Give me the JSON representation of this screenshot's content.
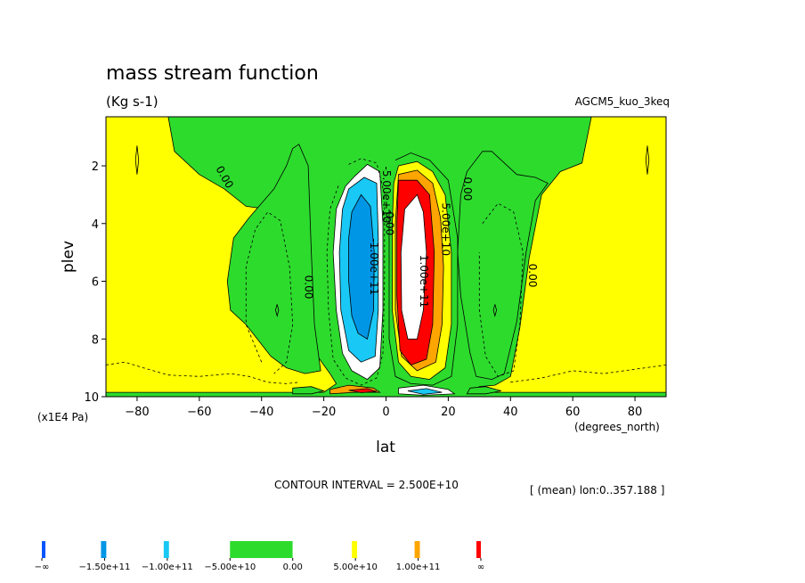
{
  "chart_data": {
    "type": "heatmap",
    "title": "mass stream function",
    "units": "(Kg s-1)",
    "model": "AGCM5_kuo_3keq",
    "xlabel": "lat",
    "xunits": "(degrees_north)",
    "ylabel": "plev",
    "yunits": "(x1E4 Pa)",
    "contour_interval": "CONTOUR INTERVAL = 2.500E+10",
    "info": "[ (mean) lon:0..357.188 ]",
    "xlim": [
      -90,
      90
    ],
    "ylim": [
      10,
      0.3
    ],
    "x_ticks": [
      -80,
      -60,
      -40,
      -20,
      0,
      20,
      40,
      60,
      80
    ],
    "x_tick_labels": [
      "−80",
      "−60",
      "−40",
      "−20",
      "0",
      "20",
      "40",
      "60",
      "80"
    ],
    "y_ticks": [
      2,
      4,
      6,
      8,
      10
    ],
    "y_tick_labels": [
      "2",
      "4",
      "6",
      "8",
      "10"
    ],
    "contour_labels": [
      {
        "text": "0.00",
        "x": -52,
        "y": 2.4,
        "angle": 60
      },
      {
        "text": "0.00",
        "x": -25,
        "y": 6.2,
        "angle": 90
      },
      {
        "text": "-5.00e+10",
        "x": 0,
        "y": 3.0,
        "angle": 90
      },
      {
        "text": "-1.00e+11",
        "x": -4,
        "y": 5.5,
        "angle": 90
      },
      {
        "text": "0.00",
        "x": 1,
        "y": 4.0,
        "angle": 90
      },
      {
        "text": "1.00e+11",
        "x": 12,
        "y": 6.0,
        "angle": 90
      },
      {
        "text": "5.00e+10",
        "x": 19,
        "y": 4.2,
        "angle": 90
      },
      {
        "text": "0.00",
        "x": 26,
        "y": 2.8,
        "angle": 90
      },
      {
        "text": "0.00",
        "x": 47,
        "y": 5.8,
        "angle": 90
      }
    ],
    "regions": [
      {
        "level": "pos1",
        "points": [
          [
            -90,
            0.3
          ],
          [
            -70,
            0.3
          ],
          [
            -68,
            1.5
          ],
          [
            -60,
            2.3
          ],
          [
            -52,
            2.8
          ],
          [
            -45,
            3.4
          ],
          [
            -38,
            3.5
          ],
          [
            -32,
            4.0
          ],
          [
            -28,
            6.0
          ],
          [
            -25,
            7.5
          ],
          [
            -22,
            8.6
          ],
          [
            -18,
            9.2
          ],
          [
            -16,
            9.55
          ],
          [
            -20,
            9.85
          ],
          [
            -40,
            9.85
          ],
          [
            -70,
            9.85
          ],
          [
            -90,
            9.85
          ]
        ]
      },
      {
        "level": "pos1",
        "points": [
          [
            35,
            9.6
          ],
          [
            40,
            9.3
          ],
          [
            43,
            7.6
          ],
          [
            46,
            5.2
          ],
          [
            50,
            3.0
          ],
          [
            56,
            2.2
          ],
          [
            63,
            1.9
          ],
          [
            66,
            0.3
          ],
          [
            90,
            0.3
          ],
          [
            90,
            9.85
          ],
          [
            40,
            9.85
          ],
          [
            32,
            9.85
          ],
          [
            30,
            9.65
          ]
        ]
      },
      {
        "level": "zero",
        "points": [
          [
            -30,
            1.4
          ],
          [
            -28,
            1.25
          ],
          [
            -25,
            2.0
          ],
          [
            -24,
            5.0
          ],
          [
            -23,
            7.5
          ],
          [
            -21,
            9.1
          ],
          [
            -26,
            9.2
          ],
          [
            -32,
            9.0
          ],
          [
            -37,
            8.6
          ],
          [
            -45,
            7.5
          ],
          [
            -50,
            7.0
          ],
          [
            -51,
            6.0
          ],
          [
            -49,
            4.5
          ],
          [
            -44,
            3.8
          ],
          [
            -36,
            2.8
          ],
          [
            -32,
            2.0
          ]
        ]
      },
      {
        "level": "zero",
        "points": [
          [
            31,
            1.5
          ],
          [
            34,
            1.5
          ],
          [
            38,
            1.9
          ],
          [
            42,
            2.3
          ],
          [
            48,
            2.4
          ],
          [
            52,
            2.6
          ],
          [
            48,
            3.2
          ],
          [
            45,
            5.0
          ],
          [
            42,
            7.4
          ],
          [
            38,
            9.2
          ],
          [
            34,
            9.4
          ],
          [
            29,
            9.3
          ],
          [
            27,
            8.5
          ],
          [
            24,
            6.5
          ],
          [
            23,
            5.0
          ],
          [
            24,
            3.0
          ],
          [
            26,
            2.2
          ]
        ]
      },
      {
        "level": "neg1",
        "points": [
          [
            -10,
            2.35
          ],
          [
            -6,
            1.95
          ],
          [
            -2,
            2.2
          ],
          [
            -1,
            4.0
          ],
          [
            -1,
            7.0
          ],
          [
            -2,
            9.0
          ],
          [
            -6,
            9.4
          ],
          [
            -11,
            9.1
          ],
          [
            -14,
            8.5
          ],
          [
            -16,
            7.0
          ],
          [
            -17,
            5.0
          ],
          [
            -16,
            3.5
          ],
          [
            -13,
            2.7
          ]
        ]
      },
      {
        "level": "neg2",
        "points": [
          [
            -12,
            2.8
          ],
          [
            -7,
            2.4
          ],
          [
            -3,
            2.6
          ],
          [
            -2.5,
            4.5
          ],
          [
            -2.5,
            7.0
          ],
          [
            -3.5,
            8.6
          ],
          [
            -8,
            8.8
          ],
          [
            -12,
            8.4
          ],
          [
            -14.5,
            7.0
          ],
          [
            -15,
            5.0
          ],
          [
            -14,
            3.5
          ]
        ]
      },
      {
        "level": "neg3",
        "points": [
          [
            -11,
            3.6
          ],
          [
            -8,
            3.0
          ],
          [
            -5,
            3.4
          ],
          [
            -3.8,
            5.0
          ],
          [
            -4,
            7.0
          ],
          [
            -6,
            8.0
          ],
          [
            -9,
            7.8
          ],
          [
            -11,
            7.2
          ],
          [
            -12,
            6.0
          ],
          [
            -12,
            4.5
          ]
        ]
      },
      {
        "level": "pos1",
        "points": [
          [
            4,
            2.0
          ],
          [
            10,
            1.85
          ],
          [
            15,
            2.2
          ],
          [
            19,
            3.0
          ],
          [
            21,
            5.0
          ],
          [
            21,
            7.5
          ],
          [
            19,
            9.0
          ],
          [
            14,
            9.4
          ],
          [
            8,
            9.3
          ],
          [
            4,
            8.8
          ],
          [
            2,
            7.0
          ],
          [
            2,
            4.0
          ],
          [
            2.5,
            2.6
          ]
        ]
      },
      {
        "level": "pos2",
        "points": [
          [
            4,
            2.3
          ],
          [
            10,
            2.15
          ],
          [
            15,
            2.6
          ],
          [
            17.5,
            3.8
          ],
          [
            18.5,
            5.5
          ],
          [
            18,
            7.5
          ],
          [
            16,
            8.8
          ],
          [
            10,
            9.1
          ],
          [
            5,
            8.6
          ],
          [
            3,
            7.0
          ],
          [
            3,
            4.0
          ]
        ]
      },
      {
        "level": "pos3",
        "points": [
          [
            4,
            2.5
          ],
          [
            10,
            2.5
          ],
          [
            14,
            3.0
          ],
          [
            15.5,
            5.0
          ],
          [
            15,
            7.5
          ],
          [
            13,
            8.7
          ],
          [
            8,
            8.9
          ],
          [
            4.5,
            8.4
          ],
          [
            3.5,
            6.5
          ],
          [
            3.5,
            4.0
          ]
        ]
      },
      {
        "level": "pos4",
        "points": [
          [
            6,
            3.5
          ],
          [
            10,
            3.0
          ],
          [
            12,
            3.6
          ],
          [
            13,
            5.0
          ],
          [
            12,
            7.0
          ],
          [
            10,
            8.0
          ],
          [
            7,
            8.0
          ],
          [
            5,
            7.0
          ],
          [
            4.8,
            5.0
          ]
        ]
      },
      {
        "level": "zero",
        "points": [
          [
            -30,
            9.7
          ],
          [
            -24,
            9.65
          ],
          [
            -20,
            9.8
          ],
          [
            -24,
            9.9
          ],
          [
            -30,
            9.9
          ]
        ]
      },
      {
        "level": "zero",
        "points": [
          [
            27,
            9.7
          ],
          [
            32,
            9.65
          ],
          [
            37,
            9.8
          ],
          [
            32,
            9.9
          ],
          [
            26,
            9.9
          ]
        ]
      },
      {
        "level": "pos2",
        "points": [
          [
            -18,
            9.75
          ],
          [
            -12,
            9.6
          ],
          [
            -4,
            9.7
          ],
          [
            -2,
            9.85
          ],
          [
            -10,
            9.85
          ],
          [
            -18,
            9.9
          ]
        ]
      },
      {
        "level": "pos3",
        "points": [
          [
            -12,
            9.78
          ],
          [
            -6,
            9.72
          ],
          [
            -3,
            9.82
          ],
          [
            -8,
            9.86
          ]
        ]
      },
      {
        "level": "neg1",
        "points": [
          [
            4,
            9.7
          ],
          [
            12,
            9.6
          ],
          [
            20,
            9.75
          ],
          [
            22,
            9.9
          ],
          [
            12,
            9.95
          ],
          [
            4,
            9.9
          ]
        ]
      },
      {
        "level": "neg2",
        "points": [
          [
            7,
            9.8
          ],
          [
            13,
            9.72
          ],
          [
            18,
            9.85
          ],
          [
            12,
            9.92
          ]
        ]
      }
    ],
    "contour_lines": [
      {
        "dashed": true,
        "points": [
          [
            -90,
            8.9
          ],
          [
            -84,
            8.8
          ],
          [
            -78,
            9.0
          ],
          [
            -70,
            9.25
          ],
          [
            -60,
            9.3
          ],
          [
            -50,
            9.2
          ],
          [
            -44,
            9.3
          ],
          [
            -38,
            9.5
          ],
          [
            -32,
            9.55
          ],
          [
            -28,
            9.5
          ]
        ]
      },
      {
        "dashed": true,
        "points": [
          [
            -40,
            8.8
          ],
          [
            -45,
            7.5
          ],
          [
            -45,
            5.5
          ],
          [
            -42,
            4.2
          ],
          [
            -38,
            3.6
          ],
          [
            -34,
            3.9
          ],
          [
            -31,
            5.5
          ],
          [
            -30,
            7.5
          ],
          [
            -32,
            8.8
          ],
          [
            -36,
            9.2
          ]
        ]
      },
      {
        "dashed": true,
        "points": [
          [
            31,
            4.0
          ],
          [
            36,
            3.3
          ],
          [
            41,
            3.6
          ],
          [
            44,
            5.0
          ],
          [
            43,
            7.5
          ],
          [
            41,
            9.1
          ],
          [
            36,
            9.3
          ],
          [
            32,
            8.6
          ],
          [
            30,
            7.0
          ],
          [
            30,
            5.0
          ]
        ]
      },
      {
        "dashed": true,
        "points": [
          [
            40,
            9.5
          ],
          [
            50,
            9.35
          ],
          [
            60,
            9.1
          ],
          [
            70,
            9.2
          ],
          [
            80,
            9.05
          ],
          [
            90,
            8.9
          ]
        ]
      },
      {
        "dashed": true,
        "points": [
          [
            -12,
            1.95
          ],
          [
            -8,
            1.75
          ],
          [
            -3,
            1.9
          ],
          [
            -0.5,
            3.0
          ],
          [
            -0.5,
            6.0
          ],
          [
            -1,
            8.5
          ],
          [
            -3,
            9.35
          ],
          [
            -8,
            9.6
          ],
          [
            -13,
            9.35
          ],
          [
            -17,
            8.7
          ],
          [
            -18.5,
            7.0
          ],
          [
            -19,
            5.0
          ],
          [
            -18,
            3.5
          ],
          [
            -15,
            2.6
          ]
        ]
      },
      {
        "dashed": false,
        "points": [
          [
            3,
            1.8
          ],
          [
            8,
            1.55
          ],
          [
            14,
            1.8
          ],
          [
            20,
            2.5
          ],
          [
            23,
            4.5
          ],
          [
            23,
            7.5
          ],
          [
            21,
            9.3
          ],
          [
            15,
            9.6
          ],
          [
            8,
            9.55
          ],
          [
            3,
            9.3
          ],
          [
            1,
            8.0
          ],
          [
            1,
            3.5
          ]
        ]
      },
      {
        "dashed": false,
        "points": [
          [
            -80,
            1.3
          ],
          [
            -80.5,
            1.8
          ],
          [
            -80,
            2.3
          ],
          [
            -79.5,
            1.8
          ],
          [
            -80,
            1.3
          ]
        ]
      },
      {
        "dashed": false,
        "points": [
          [
            -35,
            6.8
          ],
          [
            -35.5,
            7.0
          ],
          [
            -35,
            7.2
          ],
          [
            -34.5,
            7.0
          ],
          [
            -35,
            6.8
          ]
        ]
      },
      {
        "dashed": false,
        "points": [
          [
            84,
            1.3
          ],
          [
            83.5,
            1.8
          ],
          [
            84,
            2.3
          ],
          [
            84.5,
            1.8
          ],
          [
            84,
            1.3
          ]
        ]
      },
      {
        "dashed": false,
        "points": [
          [
            35,
            6.8
          ],
          [
            35.5,
            7.0
          ],
          [
            35,
            7.2
          ],
          [
            34.5,
            7.0
          ],
          [
            35,
            6.8
          ]
        ]
      }
    ],
    "colorbar": {
      "labels": [
        "−∞",
        "−1.50e+11",
        "−1.00e+11",
        "−5.00e+10",
        "0.00",
        "5.00e+10",
        "1.00e+11",
        "∞"
      ],
      "levels": [
        "neg4",
        "neg3",
        "neg2",
        "neg1",
        "zero",
        "pos1",
        "pos2",
        "pos3",
        "pos4"
      ]
    },
    "colors": {
      "neg4": "#0055ff",
      "neg3": "#0096e6",
      "neg2": "#19c8f5",
      "neg1": "#ffffff",
      "zero": "#2ddb2d",
      "pos1": "#ffff00",
      "pos2": "#ffa500",
      "pos3": "#ff0000",
      "pos4": "#ffffff"
    }
  }
}
